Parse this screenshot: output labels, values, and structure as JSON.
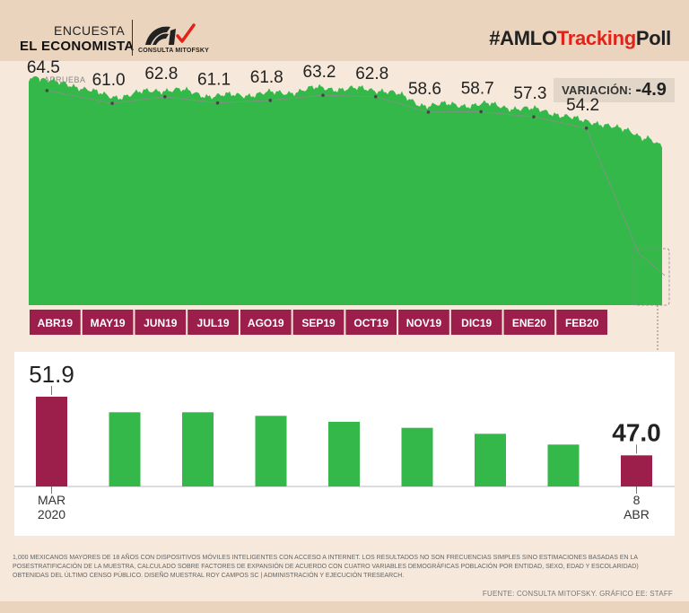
{
  "header": {
    "line1": "ENCUESTA",
    "line2": "EL ECONOMISTA",
    "logo_text": "CONSULTA MITOFSKY",
    "hashtag_a": "#AMLO",
    "hashtag_b": "Tracking",
    "hashtag_c": "Poll"
  },
  "legend": {
    "label": "APRUEBA"
  },
  "variacion": {
    "label": "VARIACIÓN:",
    "value": "-4.9"
  },
  "colors": {
    "green": "#35b84a",
    "maroon": "#9c1f4b",
    "accent": "#e2231a"
  },
  "chart_data": [
    {
      "type": "area",
      "title": "",
      "series": [
        {
          "name": "APRUEBA",
          "color": "#35b84a"
        }
      ],
      "ylim": [
        0,
        70
      ],
      "month_labels": [
        "ABR19",
        "MAY19",
        "JUN19",
        "JUL19",
        "AGO19",
        "SEP19",
        "OCT19",
        "NOV19",
        "DIC19",
        "ENE20",
        "FEB20"
      ],
      "callouts": [
        {
          "month": "ABR19",
          "value": 64.5,
          "label": "64.5"
        },
        {
          "month": "MAY19",
          "value": 61.0,
          "label": "61.0"
        },
        {
          "month": "JUN19",
          "value": 62.8,
          "label": "62.8"
        },
        {
          "month": "JUL19",
          "value": 61.1,
          "label": "61.1"
        },
        {
          "month": "AGO19",
          "value": 61.8,
          "label": "61.8"
        },
        {
          "month": "SEP19",
          "value": 63.2,
          "label": "63.2"
        },
        {
          "month": "OCT19",
          "value": 62.8,
          "label": "62.8"
        },
        {
          "month": "NOV19",
          "value": 58.6,
          "label": "58.6"
        },
        {
          "month": "DIC19",
          "value": 58.7,
          "label": "58.7"
        },
        {
          "month": "ENE20",
          "value": 57.3,
          "label": "57.3"
        },
        {
          "month": "FEB20",
          "value": 54.2,
          "label": "54.2"
        }
      ]
    },
    {
      "type": "bar",
      "title": "",
      "categories": [
        "MAR 2020",
        "",
        "",
        "",
        "",
        "",
        "",
        "",
        "8 ABR"
      ],
      "x_label_first": [
        "MAR",
        "2020"
      ],
      "x_label_last": [
        "8",
        "ABR"
      ],
      "values": [
        51.9,
        50.6,
        50.6,
        50.3,
        49.8,
        49.3,
        48.8,
        47.9,
        47.0
      ],
      "value_labels": [
        "51.9",
        "",
        "",
        "",
        "",
        "",
        "",
        "",
        "47.0"
      ],
      "ylim": [
        44.4,
        52.5
      ]
    }
  ],
  "footnote": "1,000 mexicanos mayores de 18 años con dispositivos móviles inteligentes con acceso a internet. Los resultados no son frecuencias simples sino estimaciones basadas en la posestratificación de la muestra, calculado sobre factores de expansión de acuerdo con cuatro variables demográficas población por entidad, sexo, edad y escolaridad) obtenidas del último censo público. Diseño muestral Roy Campos SC | Administración y ejecución Tresearch.",
  "source": "Fuente: Consulta Mitofsky. Gráfico EE: STAFF"
}
